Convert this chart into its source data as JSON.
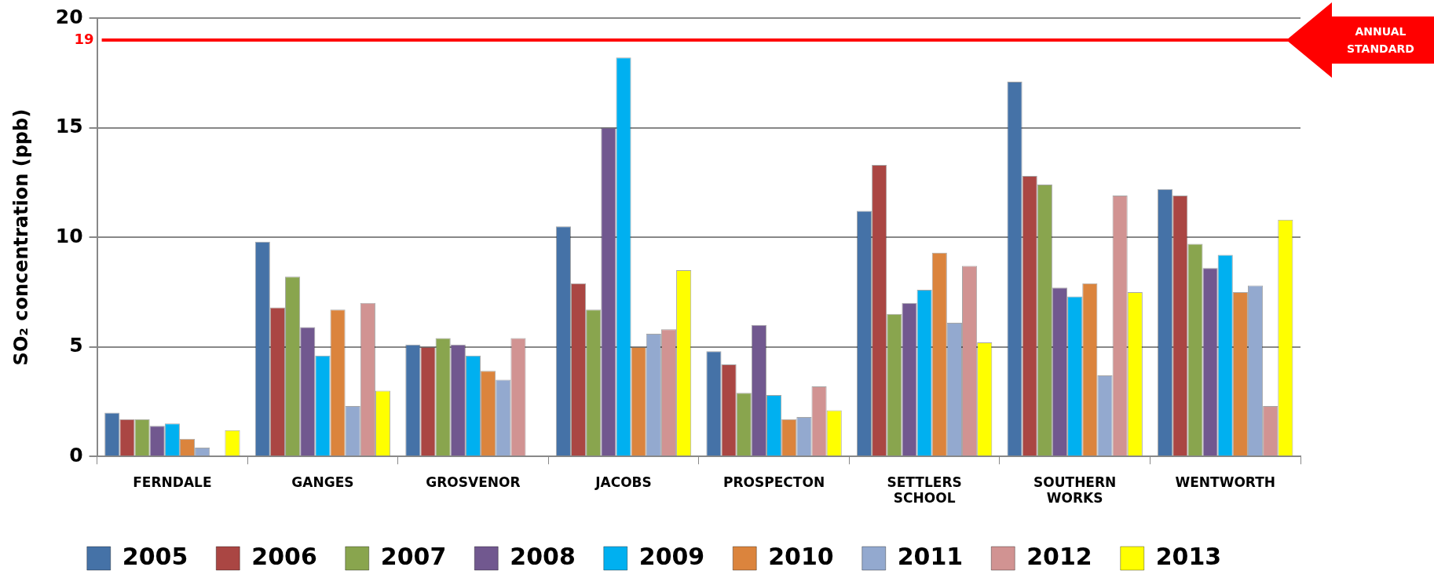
{
  "chart_data": {
    "type": "bar",
    "ylabel": "SO₂ concentration (ppb)",
    "categories": [
      "FERNDALE",
      "GANGES",
      "GROSVENOR",
      "JACOBS",
      "PROSPECTON",
      "SETTLERS SCHOOL",
      "SOUTHERN WORKS",
      "WENTWORTH"
    ],
    "series": [
      {
        "name": "2005",
        "color": "#4572a7",
        "values": [
          2.0,
          9.8,
          5.1,
          10.5,
          4.8,
          11.2,
          17.1,
          12.2
        ]
      },
      {
        "name": "2006",
        "color": "#aa4643",
        "values": [
          1.7,
          6.8,
          5.0,
          7.9,
          4.2,
          13.3,
          12.8,
          11.9
        ]
      },
      {
        "name": "2007",
        "color": "#89a54e",
        "values": [
          1.7,
          8.2,
          5.4,
          6.7,
          2.9,
          6.5,
          12.4,
          9.7
        ]
      },
      {
        "name": "2008",
        "color": "#71588f",
        "values": [
          1.4,
          5.9,
          5.1,
          15.0,
          6.0,
          7.0,
          7.7,
          8.6
        ]
      },
      {
        "name": "2009",
        "color": "#00b0f0",
        "values": [
          1.5,
          4.6,
          4.6,
          18.2,
          2.8,
          7.6,
          7.3,
          9.2
        ]
      },
      {
        "name": "2010",
        "color": "#db843d",
        "values": [
          0.8,
          6.7,
          3.9,
          5.0,
          1.7,
          9.3,
          7.9,
          7.5
        ]
      },
      {
        "name": "2011",
        "color": "#93a9cf",
        "values": [
          0.4,
          2.3,
          3.5,
          5.6,
          1.8,
          6.1,
          3.7,
          7.8
        ]
      },
      {
        "name": "2012",
        "color": "#d19392",
        "values": [
          null,
          7.0,
          5.4,
          5.8,
          3.2,
          8.7,
          11.9,
          2.3
        ]
      },
      {
        "name": "2013",
        "color": "#ffff00",
        "values": [
          1.2,
          3.0,
          null,
          8.5,
          2.1,
          5.2,
          7.5,
          10.8
        ]
      }
    ],
    "ylim": [
      0,
      20
    ],
    "yticks": [
      0,
      5,
      10,
      15,
      20
    ],
    "grid": "y",
    "legend": "bottom",
    "ref_lines": [
      {
        "axis": "y",
        "value": 19,
        "label": "19",
        "color": "#ff0000"
      }
    ],
    "annotations": [
      {
        "text": "ANNUAL STANDARD",
        "y": 19
      }
    ]
  }
}
